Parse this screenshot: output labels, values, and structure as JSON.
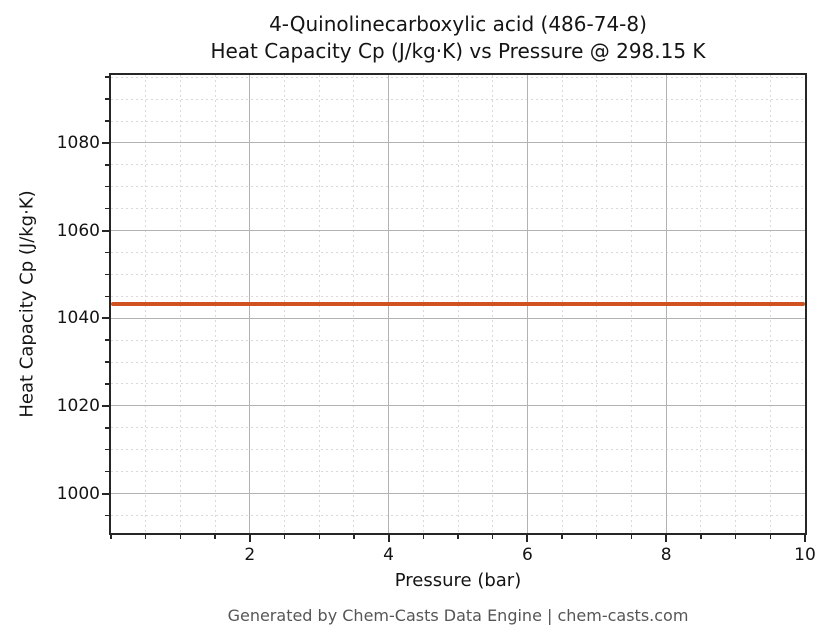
{
  "chart_data": {
    "type": "line",
    "title_line1": "4-Quinolinecarboxylic acid (486-74-8)",
    "title_line2": "Heat Capacity Cp (J/kg·K) vs Pressure @ 298.15 K",
    "xlabel": "Pressure (bar)",
    "ylabel": "Heat Capacity Cp (J/kg·K)",
    "xlim": [
      0,
      10
    ],
    "ylim": [
      991,
      1095.5
    ],
    "x_major_ticks": [
      2,
      4,
      6,
      8,
      10
    ],
    "x_minor_step": 0.5,
    "y_major_ticks": [
      1000,
      1020,
      1040,
      1060,
      1080
    ],
    "y_minor_step": 5,
    "grid": {
      "major_color": "#b3b3b3",
      "minor_color": "#d9d9d9",
      "minor_style": "dashed"
    },
    "series": [
      {
        "name": "Heat Capacity Cp",
        "color": "#d0521e",
        "x": [
          0,
          10
        ],
        "y": [
          1043.3,
          1043.3
        ],
        "constant_value": 1043.3
      }
    ]
  },
  "footer": {
    "text": "Generated by Chem-Casts Data Engine | chem-casts.com"
  }
}
